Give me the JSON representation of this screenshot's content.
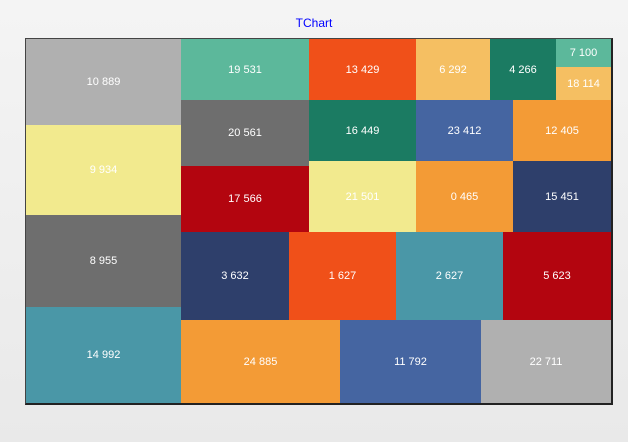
{
  "chart_data": {
    "type": "treemap",
    "title": "TChart",
    "cells": [
      {
        "label": "10 889",
        "color": "#b0b0b0"
      },
      {
        "label": "9 934",
        "color": "#f2ea8e"
      },
      {
        "label": "8 955",
        "color": "#6e6e6e"
      },
      {
        "label": "14 992",
        "color": "#4a97a7"
      },
      {
        "label": "19 531",
        "color": "#5cb89b"
      },
      {
        "label": "13 429",
        "color": "#f05019"
      },
      {
        "label": "6 292",
        "color": "#f5bf62"
      },
      {
        "label": "4 266",
        "color": "#1b7b62"
      },
      {
        "label": "7 100",
        "color": "#5cb89b"
      },
      {
        "label": "18 114",
        "color": "#f5bf62"
      },
      {
        "label": "20 561",
        "color": "#6e6e6e"
      },
      {
        "label": "16 449",
        "color": "#1b7b62"
      },
      {
        "label": "23 412",
        "color": "#4565a1"
      },
      {
        "label": "12 405",
        "color": "#f39b36"
      },
      {
        "label": "17 566",
        "color": "#b3050f"
      },
      {
        "label": "21 501",
        "color": "#f2ea8e"
      },
      {
        "label": "0 465",
        "color": "#f39b36"
      },
      {
        "label": "15 451",
        "color": "#2e3f6b"
      },
      {
        "label": "3 632",
        "color": "#2e3f6b"
      },
      {
        "label": "1 627",
        "color": "#f05019"
      },
      {
        "label": "2 627",
        "color": "#4a97a7"
      },
      {
        "label": "5 623",
        "color": "#b3050f"
      },
      {
        "label": "24 885",
        "color": "#f39b36"
      },
      {
        "label": "11 792",
        "color": "#4565a1"
      },
      {
        "label": "22 711",
        "color": "#b0b0b0"
      }
    ]
  }
}
